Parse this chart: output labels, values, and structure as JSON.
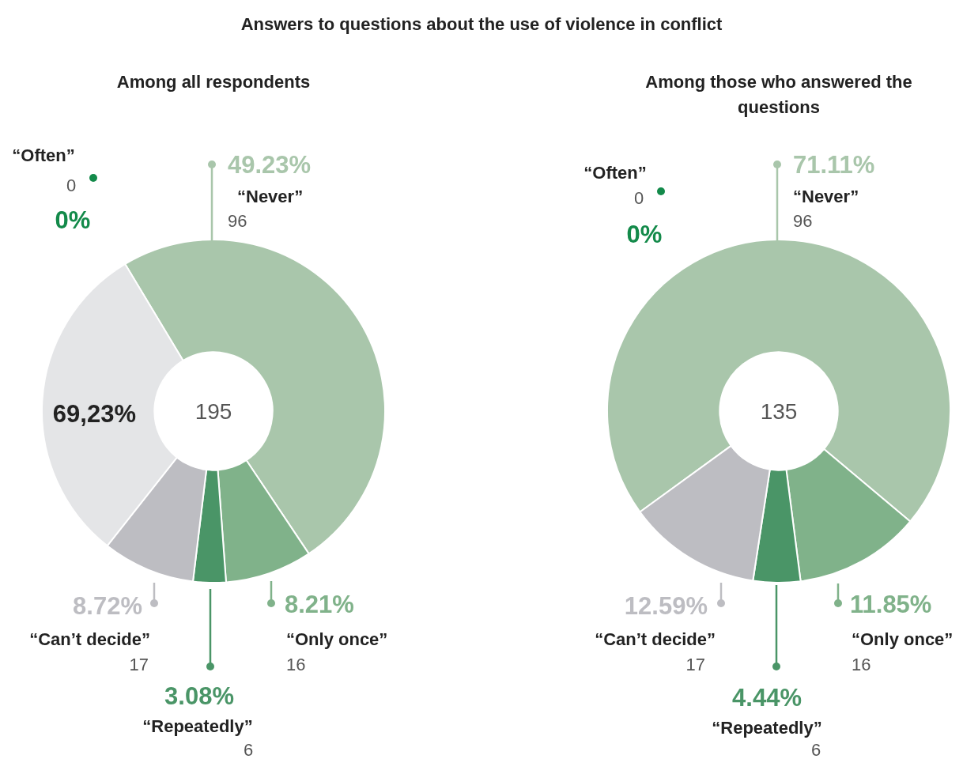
{
  "chart_data": [
    {
      "type": "donut",
      "title": "Answers to questions about the use of violence in conflict",
      "subtitle": "Among all respondents",
      "categories": [
        "“Never”",
        "“Only once”",
        "“Repeatedly”",
        "“Can’t decide”",
        null,
        "“Often”"
      ],
      "values": [
        49.23,
        8.21,
        3.08,
        8.72,
        30.76,
        0
      ],
      "colors": [
        "#a9c6ab",
        "#80b28a",
        "#4a9567",
        "#bdbdc2",
        "#e4e5e7",
        "#138a4a"
      ],
      "value_labels": [
        "49.23%",
        "8.21%",
        "3.08%",
        "8.72%",
        null,
        "0%"
      ],
      "annotations": [
        "195",
        "69,23%",
        {
          "text": "96",
          "x": "“Never”"
        },
        {
          "text": "16",
          "x": "“Only once”"
        },
        {
          "text": "6",
          "x": "“Repeatedly”"
        },
        {
          "text": "17",
          "x": "“Can’t decide”"
        },
        {
          "text": "0",
          "x": "“Often”"
        }
      ]
    },
    {
      "type": "donut",
      "subtitle": "Among those who answered the questions",
      "categories": [
        "“Never”",
        "“Only once”",
        "“Repeatedly”",
        "“Can’t decide”",
        "“Often”"
      ],
      "values": [
        71.11,
        11.85,
        4.44,
        12.59,
        0
      ],
      "colors": [
        "#a9c6ab",
        "#80b28a",
        "#4a9567",
        "#bdbdc2",
        "#138a4a"
      ],
      "value_labels": [
        "71.11%",
        "11.85%",
        "4.44%",
        "12.59%",
        "0%"
      ],
      "annotations": [
        "135",
        {
          "text": "96",
          "x": "“Never”"
        },
        {
          "text": "16",
          "x": "“Only once”"
        },
        {
          "text": "6",
          "x": "“Repeatedly”"
        },
        {
          "text": "17",
          "x": "“Can’t decide”"
        },
        {
          "text": "0",
          "x": "“Often”"
        }
      ]
    }
  ]
}
